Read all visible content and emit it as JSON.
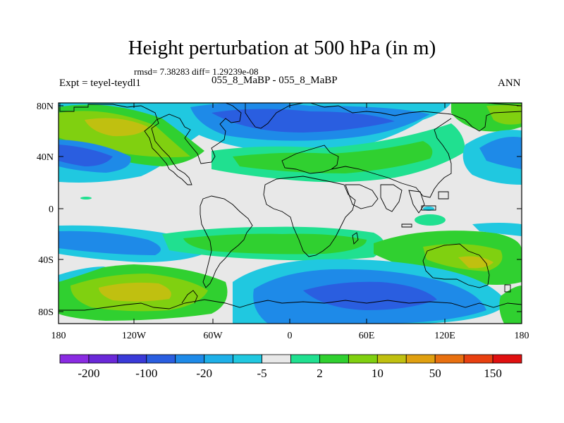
{
  "title": "Height perturbation at 500 hPa (in m)",
  "stats": "rmsd= 7.38283 diff= 1.29239e-08",
  "expt": "Expt = teyel-teydl1",
  "center_label": "055_8_MaBP - 055_8_MaBP",
  "season": "ANN",
  "lat_labels": [
    "80N",
    "40N",
    "0",
    "40S",
    "80S"
  ],
  "lon_labels": [
    "180",
    "120W",
    "60W",
    "0",
    "60E",
    "120E",
    "180"
  ],
  "colorbar": {
    "colors": [
      "#8a2be2",
      "#6a28d8",
      "#3a3ad8",
      "#2a5ee0",
      "#1e8ae8",
      "#1eb0e8",
      "#20c8e0",
      "#e8e8e8",
      "#20e090",
      "#30d030",
      "#80d010",
      "#c0c010",
      "#e0a010",
      "#e87010",
      "#e84010",
      "#e01010"
    ],
    "labels": [
      "-200",
      "-100",
      "-20",
      "-5",
      "2",
      "10",
      "50",
      "150"
    ]
  },
  "palette": {
    "land_outline": "#000000",
    "neutral": "#e8e8e8"
  }
}
